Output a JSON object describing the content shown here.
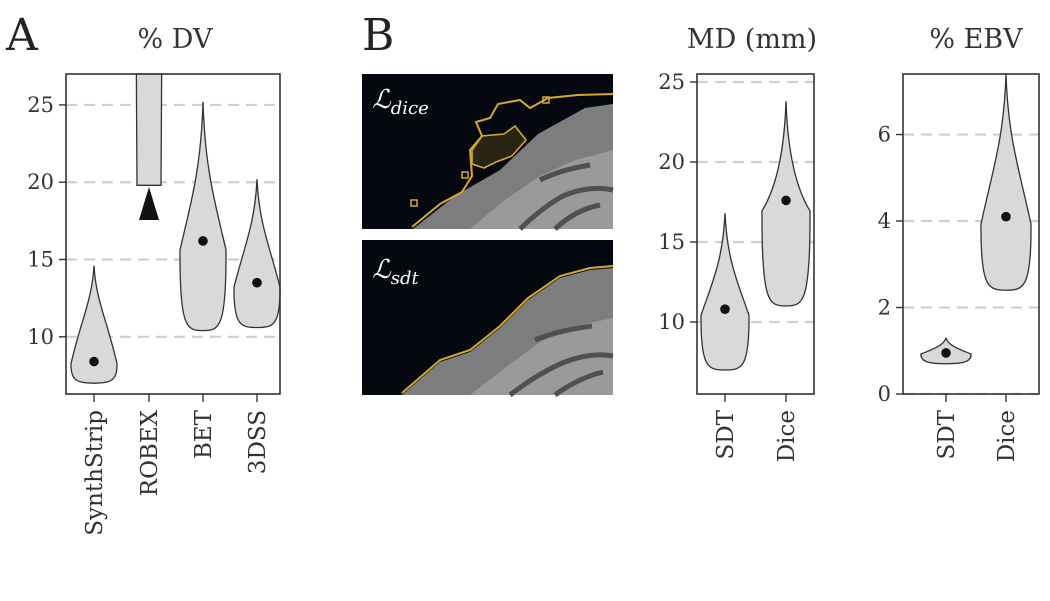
{
  "panels": {
    "a_letter": "A",
    "b_letter": "B"
  },
  "brain_images": [
    {
      "label": "ℒ",
      "subscript": "dice"
    },
    {
      "label": "ℒ",
      "subscript": "sdt"
    }
  ],
  "colors": {
    "violin_fill": "#d9d9d9",
    "outline": "#333333",
    "grid": "#cfcfcf",
    "contour": "#d4a92a",
    "brain_bg": "#05080e"
  },
  "chart_data": [
    {
      "type": "violin",
      "title": "% DV",
      "categories": [
        "SynthStrip",
        "ROBEX",
        "BET",
        "3DSS"
      ],
      "ylim": [
        6.3,
        27
      ],
      "yticks": [
        10,
        15,
        20,
        25
      ],
      "grid": true,
      "series": [
        {
          "category": "SynthStrip",
          "min": 7.0,
          "max": 14.6,
          "median": 8.4
        },
        {
          "category": "ROBEX",
          "min": 19.8,
          "max": 27,
          "median": null,
          "clipped_above": true,
          "annotation": "arrow-down"
        },
        {
          "category": "BET",
          "min": 10.4,
          "max": 25.2,
          "median": 16.2
        },
        {
          "category": "3DSS",
          "min": 10.6,
          "max": 20.2,
          "median": 13.5
        }
      ]
    },
    {
      "type": "violin",
      "title": "MD (mm)",
      "categories": [
        "SDT",
        "Dice"
      ],
      "ylim": [
        5.5,
        25.5
      ],
      "yticks": [
        10,
        15,
        20,
        25
      ],
      "grid": true,
      "series": [
        {
          "category": "SDT",
          "min": 7.0,
          "max": 16.8,
          "median": 10.8
        },
        {
          "category": "Dice",
          "min": 11.0,
          "max": 23.8,
          "median": 17.6
        }
      ]
    },
    {
      "type": "violin",
      "title": "% EBV",
      "categories": [
        "SDT",
        "Dice"
      ],
      "ylim": [
        0,
        7.4
      ],
      "yticks": [
        0,
        2,
        4,
        6
      ],
      "grid": true,
      "series": [
        {
          "category": "SDT",
          "min": 0.7,
          "max": 1.3,
          "median": 0.95
        },
        {
          "category": "Dice",
          "min": 2.4,
          "max": 7.4,
          "median": 4.1
        }
      ]
    }
  ]
}
